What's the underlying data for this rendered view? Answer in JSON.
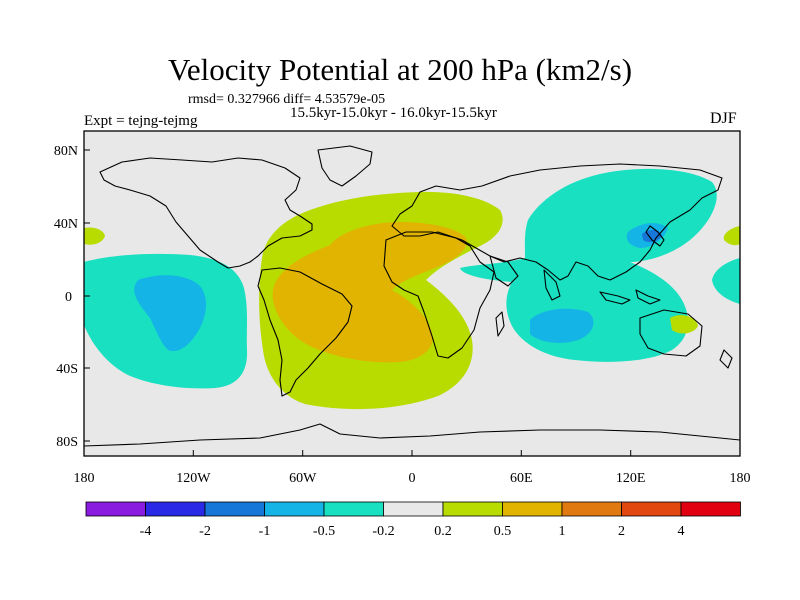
{
  "title": "Velocity Potential at 200 hPa (km2/s)",
  "stats": {
    "rmsd_label": "rmsd= 0.327966 diff= 4.53579e-05"
  },
  "periods": "15.5kyr-15.0kyr - 16.0kyr-15.5kyr",
  "experiment": "Expt = tejng-tejmg",
  "season": "DJF",
  "axes": {
    "x_labels": [
      "180",
      "120W",
      "60W",
      "0",
      "60E",
      "120E",
      "180"
    ],
    "y_labels": [
      "80N",
      "40N",
      "0",
      "40S",
      "80S"
    ]
  },
  "colorbar": {
    "colors": [
      "#8a1ce0",
      "#2a2ae6",
      "#1677d8",
      "#14b4e6",
      "#18e0c0",
      "#e8e8e8",
      "#b8dc00",
      "#e0b400",
      "#e07a10",
      "#e04810",
      "#e00010"
    ],
    "labels": [
      "-4",
      "-2",
      "-1",
      "-0.5",
      "-0.2",
      "0.2",
      "0.5",
      "1",
      "2",
      "4"
    ]
  },
  "palette": {
    "background": "#e8e8e8",
    "neg_weak": "#18e0c0",
    "neg_mid": "#14b4e6",
    "neg_strong": "#1677d8",
    "pos_weak": "#b8dc00",
    "pos_mid": "#e0b400"
  }
}
